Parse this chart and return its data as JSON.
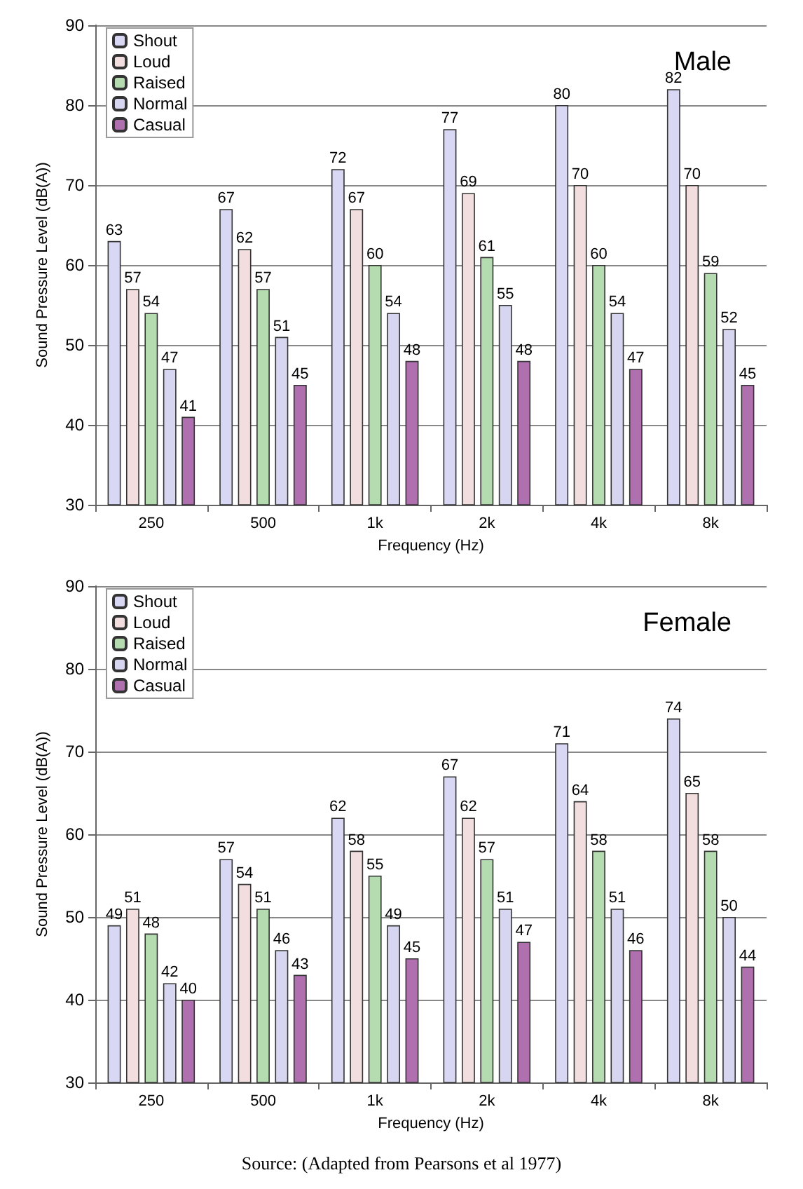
{
  "chart_data": [
    {
      "type": "bar",
      "title": "Male",
      "xlabel": "Frequency (Hz)",
      "ylabel": "Sound Pressure Level (dB(A))",
      "categories": [
        "250",
        "500",
        "1k",
        "2k",
        "4k",
        "8k"
      ],
      "series": [
        {
          "name": "Shout",
          "color": "#d8d8f4",
          "values": [
            63,
            67,
            72,
            77,
            80,
            82
          ]
        },
        {
          "name": "Loud",
          "color": "#f2dede",
          "values": [
            57,
            62,
            67,
            69,
            70,
            70
          ]
        },
        {
          "name": "Raised",
          "color": "#b4dcb0",
          "values": [
            54,
            57,
            60,
            61,
            60,
            59
          ]
        },
        {
          "name": "Normal",
          "color": "#d6d6f0",
          "values": [
            47,
            51,
            54,
            55,
            54,
            52
          ]
        },
        {
          "name": "Casual",
          "color": "#b070b0",
          "values": [
            41,
            45,
            48,
            48,
            47,
            45
          ]
        }
      ],
      "ylim": [
        30,
        90
      ],
      "yticks": [
        30,
        40,
        50,
        60,
        70,
        80,
        90
      ],
      "grid": "y",
      "legend": "top left",
      "data_labels": true
    },
    {
      "type": "bar",
      "title": "Female",
      "xlabel": "Frequency (Hz)",
      "ylabel": "Sound Pressure Level (dB(A))",
      "categories": [
        "250",
        "500",
        "1k",
        "2k",
        "4k",
        "8k"
      ],
      "series": [
        {
          "name": "Shout",
          "color": "#d8d8f4",
          "values": [
            49,
            57,
            62,
            67,
            71,
            74
          ]
        },
        {
          "name": "Loud",
          "color": "#f2dede",
          "values": [
            51,
            54,
            58,
            62,
            64,
            65
          ]
        },
        {
          "name": "Raised",
          "color": "#b4dcb0",
          "values": [
            48,
            51,
            55,
            57,
            58,
            58
          ]
        },
        {
          "name": "Normal",
          "color": "#d6d6f0",
          "values": [
            42,
            46,
            49,
            51,
            51,
            50
          ]
        },
        {
          "name": "Casual",
          "color": "#b070b0",
          "values": [
            40,
            43,
            45,
            47,
            46,
            44
          ]
        }
      ],
      "ylim": [
        30,
        90
      ],
      "yticks": [
        30,
        40,
        50,
        60,
        70,
        80,
        90
      ],
      "grid": "y",
      "legend": "top left",
      "data_labels": true,
      "annotations": [
        "Source: (Adapted from Pearsons et al 1977)"
      ]
    }
  ]
}
